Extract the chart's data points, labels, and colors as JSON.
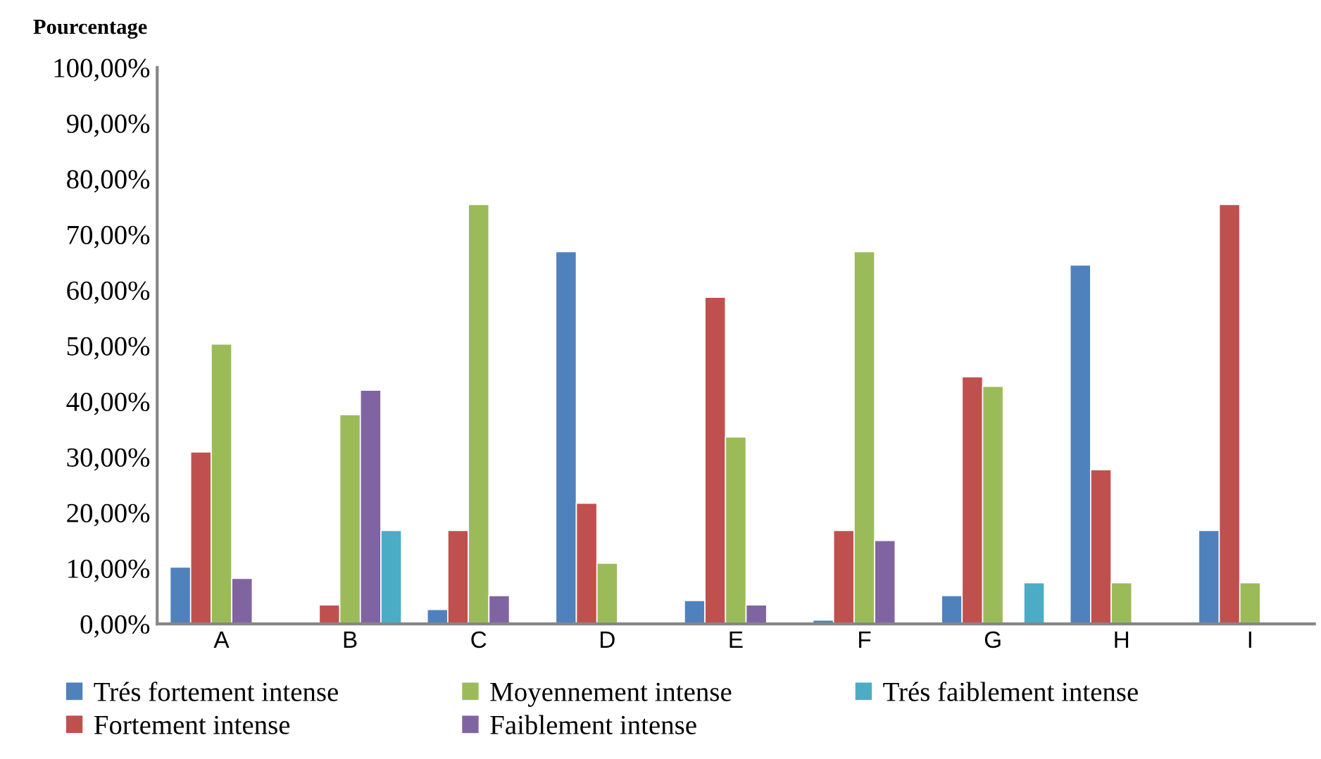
{
  "chart_data": {
    "type": "bar",
    "ylabel": "Pourcentage",
    "categories": [
      "A",
      "B",
      "C",
      "D",
      "E",
      "F",
      "G",
      "H",
      "I"
    ],
    "series": [
      {
        "name": "Trés fortement intense",
        "color": "#4f81bd",
        "values": [
          10.2,
          null,
          2.6,
          66.9,
          4.2,
          0.7,
          5.1,
          64.5,
          16.8
        ]
      },
      {
        "name": "Fortement intense",
        "color": "#c0504d",
        "values": [
          30.9,
          3.4,
          16.8,
          21.7,
          58.7,
          16.8,
          44.4,
          27.7,
          75.4
        ]
      },
      {
        "name": "Moyennement intense",
        "color": "#9bbb59",
        "values": [
          50.3,
          37.6,
          75.4,
          10.9,
          33.6,
          66.9,
          42.7,
          7.4,
          7.4
        ]
      },
      {
        "name": "Faiblement intense",
        "color": "#8064a2",
        "values": [
          8.2,
          42.0,
          5.1,
          null,
          3.4,
          15.0,
          null,
          null,
          null
        ]
      },
      {
        "name": "Trés faiblement intense",
        "color": "#4bacc6",
        "values": [
          null,
          16.8,
          null,
          null,
          null,
          null,
          7.4,
          null,
          null
        ]
      }
    ],
    "ylim": [
      0,
      100
    ],
    "yticks": [
      {
        "value": 0,
        "label": "0,00%"
      },
      {
        "value": 10,
        "label": "10,00%"
      },
      {
        "value": 20,
        "label": "20,00%"
      },
      {
        "value": 30,
        "label": "30,00%"
      },
      {
        "value": 40,
        "label": "40,00%"
      },
      {
        "value": 50,
        "label": "50,00%"
      },
      {
        "value": 60,
        "label": "60,00%"
      },
      {
        "value": 70,
        "label": "70,00%"
      },
      {
        "value": 80,
        "label": "80,00%"
      },
      {
        "value": 90,
        "label": "90,00%"
      },
      {
        "value": 100,
        "label": "100,00%"
      }
    ],
    "grid": false,
    "legend": "bottom"
  }
}
